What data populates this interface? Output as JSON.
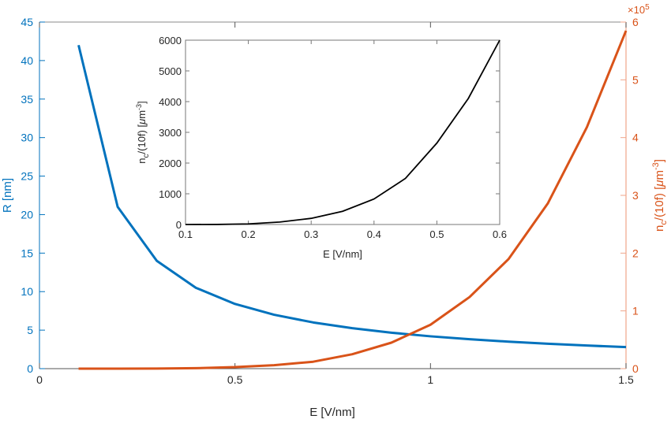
{
  "chart_data": [
    {
      "type": "line",
      "name": "main",
      "xlabel": "E [V/nm]",
      "xlim": [
        0,
        1.5
      ],
      "xticks": [
        "0",
        "0.5",
        "1",
        "1.5"
      ],
      "grid": false,
      "left_axis": {
        "label": "R [nm]",
        "ylim": [
          0,
          45
        ],
        "yticks": [
          "0",
          "5",
          "10",
          "15",
          "20",
          "25",
          "30",
          "35",
          "40",
          "45"
        ],
        "color": "#0072BD"
      },
      "right_axis": {
        "label_main": "n",
        "label_sub": "c",
        "label_mid": "/(10f) [",
        "label_mu": "μ",
        "label_unit": "m",
        "label_sup": "-3",
        "label_end": "]",
        "ylim": [
          0,
          600000
        ],
        "yticks": [
          "0",
          "1",
          "2",
          "3",
          "4",
          "5",
          "6"
        ],
        "exponent_prefix": "×10",
        "exponent_power": "5",
        "color": "#D95319"
      },
      "series": [
        {
          "name": "R",
          "axis": "left",
          "color": "#0072BD",
          "x": [
            0.1,
            0.2,
            0.3,
            0.4,
            0.5,
            0.6,
            0.7,
            0.8,
            0.9,
            1.0,
            1.1,
            1.2,
            1.3,
            1.4,
            1.5
          ],
          "values": [
            42,
            21,
            14,
            10.5,
            8.4,
            7,
            6,
            5.25,
            4.67,
            4.2,
            3.82,
            3.5,
            3.23,
            3,
            2.8
          ]
        },
        {
          "name": "n_c/(10f)",
          "axis": "right",
          "color": "#D95319",
          "x": [
            0.1,
            0.2,
            0.3,
            0.4,
            0.5,
            0.6,
            0.7,
            0.8,
            0.9,
            1.0,
            1.1,
            1.2,
            1.3,
            1.4,
            1.5
          ],
          "values": [
            0,
            20,
            200,
            830,
            2650,
            6000,
            12000,
            25000,
            45000,
            76000,
            124000,
            190000,
            286000,
            418000,
            585000
          ]
        }
      ]
    },
    {
      "type": "line",
      "name": "inset",
      "xlabel": "E [V/nm]",
      "ylabel_main": "n",
      "ylabel_sub": "c",
      "ylabel_mid": "/(10f) [",
      "ylabel_mu": "μ",
      "ylabel_unit": "m",
      "ylabel_sup": "-3",
      "ylabel_end": "]",
      "xlim": [
        0.1,
        0.6
      ],
      "ylim": [
        0,
        6000
      ],
      "xticks": [
        "0.1",
        "0.2",
        "0.3",
        "0.4",
        "0.5",
        "0.6"
      ],
      "yticks": [
        "0",
        "1000",
        "2000",
        "3000",
        "4000",
        "5000",
        "6000"
      ],
      "series": [
        {
          "name": "n_c/(10f)",
          "color": "#000000",
          "x": [
            0.1,
            0.15,
            0.2,
            0.25,
            0.3,
            0.35,
            0.4,
            0.45,
            0.5,
            0.55,
            0.6
          ],
          "values": [
            0,
            2,
            20,
            80,
            200,
            430,
            830,
            1500,
            2650,
            4100,
            6000
          ]
        }
      ]
    }
  ]
}
